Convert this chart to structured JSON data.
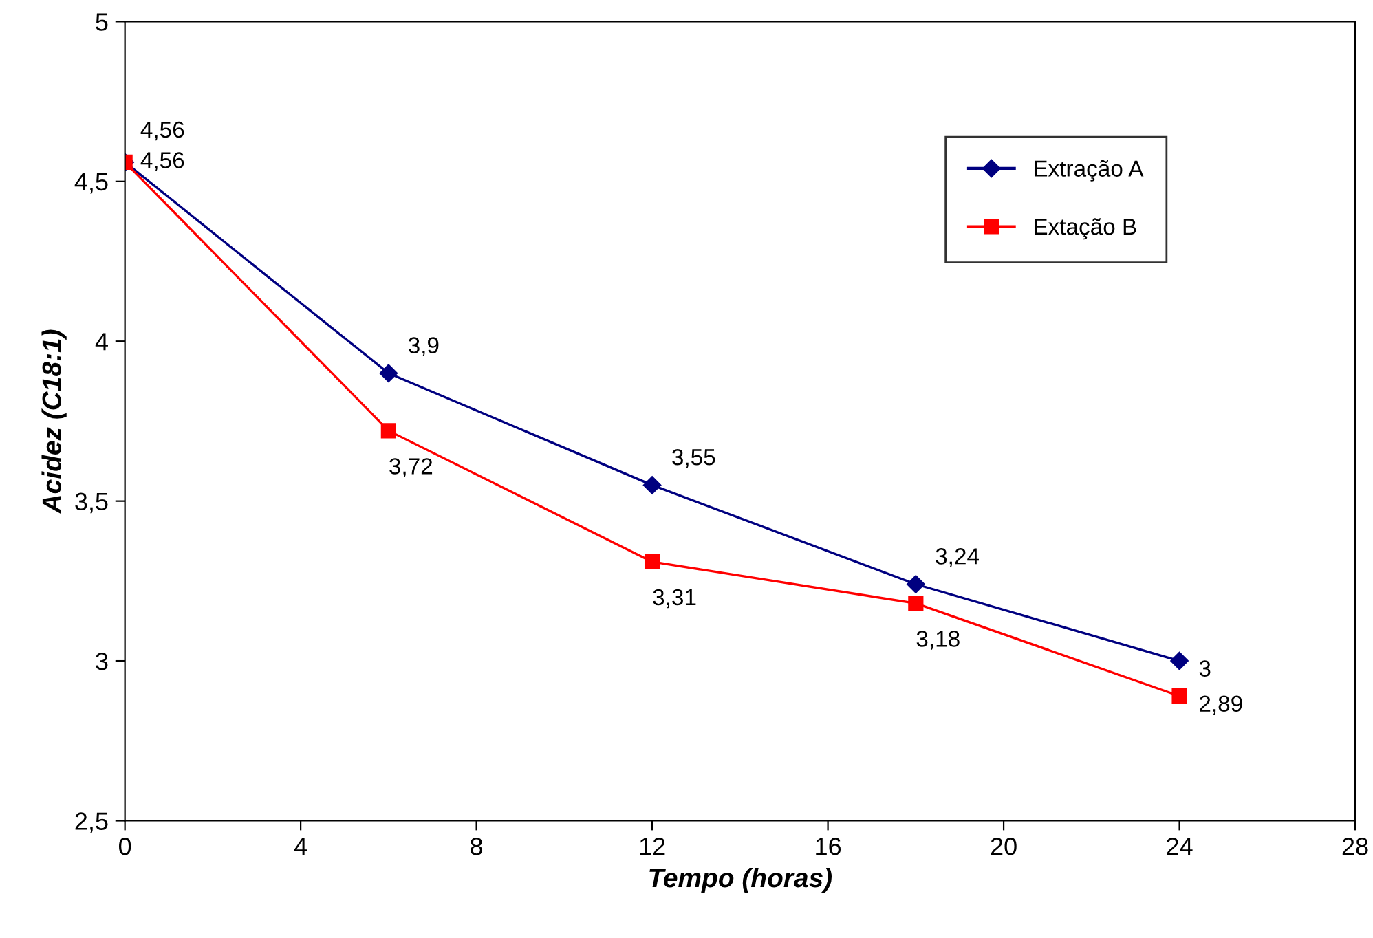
{
  "chart_data": {
    "type": "line",
    "xlabel": "Tempo (horas)",
    "ylabel": "Acidez (C18:1)",
    "x": [
      0,
      6,
      12,
      18,
      24
    ],
    "series": [
      {
        "name": "Extração A",
        "color": "#000080",
        "marker": "diamond",
        "values": [
          4.56,
          3.9,
          3.55,
          3.24,
          3.0
        ],
        "value_labels": [
          "4,56",
          "3,9",
          "3,55",
          "3,24",
          "3"
        ]
      },
      {
        "name": "Extação B",
        "color": "#ff0000",
        "marker": "square",
        "values": [
          4.56,
          3.72,
          3.31,
          3.18,
          2.89
        ],
        "value_labels": [
          "4,56",
          "3,72",
          "3,31",
          "3,18",
          "2,89"
        ]
      }
    ],
    "xlim": [
      0,
      28
    ],
    "xticks": [
      0,
      4,
      8,
      12,
      16,
      20,
      24,
      28
    ],
    "ylim": [
      2.5,
      5
    ],
    "yticks": [
      {
        "value": 2.5,
        "label": "2,5"
      },
      3,
      {
        "value": 3.5,
        "label": "3,5"
      },
      4,
      {
        "value": 4.5,
        "label": "4,5"
      },
      5
    ],
    "grid": false,
    "legend": "top right",
    "line_style": "solid"
  }
}
